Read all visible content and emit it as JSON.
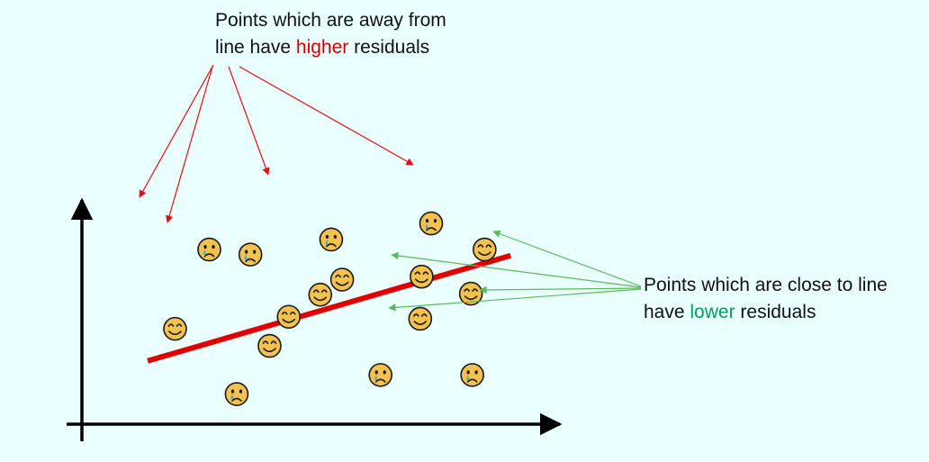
{
  "top_note": {
    "line1": "Points which are away from",
    "line2_before": "line have ",
    "line2_highlight": "higher",
    "line2_after": " residuals",
    "highlight_color": "#d40000",
    "arrow_color": "#e01010"
  },
  "right_note": {
    "line1": "Points which are close to line",
    "line2_before": "have ",
    "line2_highlight": "lower",
    "line2_after": " residuals",
    "highlight_color": "#00a05a",
    "arrow_color": "#5cb85c"
  },
  "colors": {
    "background": "#eaffff",
    "axis": "#000000",
    "fit_line": "#e00000",
    "face_fill": "#f2c14e",
    "tear": "#3fa9e0"
  },
  "points": [
    {
      "face": "sad-face-icon",
      "x": 0.2,
      "y": 8.7
    },
    {
      "face": "sad-face-icon",
      "x": 0.5,
      "y": 8.45
    },
    {
      "face": "sad-face-icon",
      "x": 1.09,
      "y": 9.2
    },
    {
      "face": "sad-face-icon",
      "x": 1.82,
      "y": 10.0
    },
    {
      "face": "sad-face-icon",
      "x": 0.4,
      "y": 1.5
    },
    {
      "face": "sad-face-icon",
      "x": 1.45,
      "y": 2.45
    },
    {
      "face": "sad-face-icon",
      "x": 2.12,
      "y": 2.45
    },
    {
      "face": "smile-face-icon",
      "x": -0.05,
      "y": 4.75
    },
    {
      "face": "smile-face-icon",
      "x": 0.64,
      "y": 3.9
    },
    {
      "face": "smile-face-icon",
      "x": 0.78,
      "y": 5.35
    },
    {
      "face": "smile-face-icon",
      "x": 1.01,
      "y": 6.45
    },
    {
      "face": "smile-face-icon",
      "x": 1.17,
      "y": 7.2
    },
    {
      "face": "smile-face-icon",
      "x": 1.74,
      "y": 5.25
    },
    {
      "face": "smile-face-icon",
      "x": 1.75,
      "y": 7.35
    },
    {
      "face": "smile-face-icon",
      "x": 2.11,
      "y": 6.5
    },
    {
      "face": "smile-face-icon",
      "x": 2.21,
      "y": 8.7
    }
  ],
  "fit_line": {
    "x1": -0.25,
    "y1": 3.15,
    "x2": 2.4,
    "y2": 8.4
  },
  "x_range": [
    -0.73,
    2.76
  ],
  "y_range": [
    0,
    11.26
  ]
}
